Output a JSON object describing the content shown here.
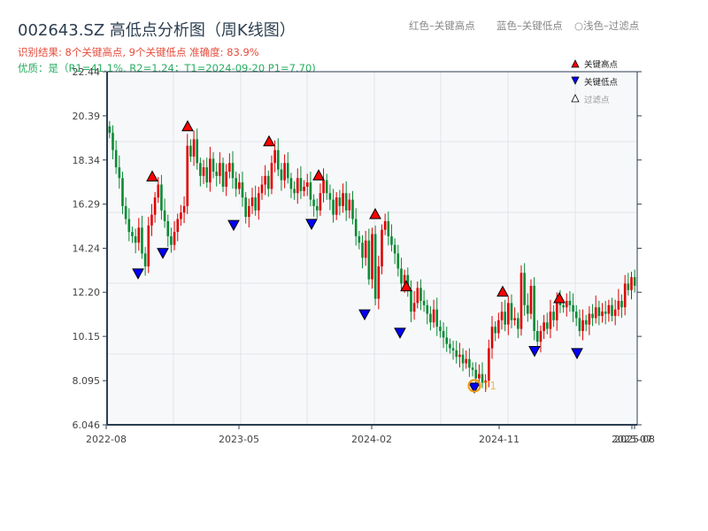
{
  "header": {
    "title": "002643.SZ 高低点分析图（周K线图）",
    "result_line": "识别结果: 8个关键高点, 9个关键低点  准确度: 83.9%",
    "quality_line": "优质：是（R1=41.1%, R2=1.24；T1=2024-09-20 P1=7.70)",
    "hint_high": "红色–关键高点",
    "hint_low": "蓝色–关键低点",
    "hint_filtered": "○浅色–过滤点"
  },
  "colors": {
    "up": "#e00000",
    "down": "#0a8a34",
    "high_marker": "#ff0000",
    "low_marker": "#0000ff",
    "t1_ring": "#f39c12",
    "axis": "#2c3e50",
    "plot_bg": "#f7f8fa",
    "grid": "#e1e4e8"
  },
  "chart_data": {
    "type": "candlestick",
    "title": "002643.SZ 高低点分析图（周K线图）",
    "xlabel": "",
    "ylabel": "",
    "ylim": [
      6.046,
      22.44
    ],
    "yticks": [
      6.046,
      8.095,
      10.15,
      12.2,
      14.24,
      16.29,
      18.34,
      20.39,
      22.44
    ],
    "ytick_labels": [
      "6.046",
      "8.095",
      "10.15",
      "12.20",
      "14.24",
      "16.29",
      "18.34",
      "20.39",
      "22.44"
    ],
    "xtick_labels": [
      "2022-08",
      "2023-05",
      "2024-02",
      "2024-11",
      "2025-07",
      "2025-08"
    ],
    "legend": [
      {
        "label": "关键高点",
        "marker": "triangle-up",
        "color": "#ff0000"
      },
      {
        "label": "关键低点",
        "marker": "triangle-down",
        "color": "#0000ff"
      },
      {
        "label": "过滤点",
        "marker": "triangle-up-hollow",
        "color": "#999999"
      }
    ],
    "grid": true,
    "annotations": [
      {
        "label": "T1",
        "date": "2024-09-20",
        "price": 7.7
      }
    ],
    "weekly_close": [
      19.6,
      18.8,
      18.0,
      17.5,
      16.2,
      15.6,
      15.0,
      14.8,
      14.5,
      15.2,
      14.0,
      13.4,
      15.3,
      15.8,
      16.6,
      17.2,
      16.0,
      15.5,
      14.8,
      14.4,
      15.0,
      15.6,
      15.9,
      16.2,
      19.0,
      18.5,
      19.3,
      18.2,
      17.6,
      18.0,
      17.3,
      18.4,
      17.8,
      17.6,
      18.2,
      17.1,
      17.8,
      18.2,
      17.5,
      17.0,
      17.3,
      16.6,
      15.7,
      16.2,
      16.6,
      16.0,
      16.8,
      17.2,
      17.6,
      17.0,
      18.2,
      18.8,
      17.9,
      17.4,
      18.2,
      17.5,
      17.0,
      16.8,
      17.5,
      16.9,
      17.1,
      17.3,
      16.5,
      16.2,
      16.0,
      16.8,
      17.4,
      16.8,
      16.5,
      15.8,
      16.6,
      16.2,
      16.8,
      16.0,
      16.5,
      15.6,
      14.8,
      14.5,
      13.8,
      14.6,
      12.8,
      14.9,
      11.9,
      13.4,
      15.1,
      15.5,
      14.8,
      14.4,
      14.0,
      13.3,
      12.6,
      13.0,
      12.3,
      11.3,
      11.7,
      12.4,
      11.8,
      11.6,
      11.2,
      10.8,
      11.4,
      10.6,
      10.4,
      10.1,
      9.8,
      9.6,
      9.5,
      9.2,
      9.3,
      8.9,
      9.1,
      8.7,
      8.6,
      8.2,
      8.4,
      8.0,
      8.1,
      9.6,
      10.6,
      10.3,
      10.9,
      11.3,
      10.7,
      11.7,
      10.9,
      11.0,
      10.5,
      13.1,
      11.6,
      11.2,
      12.5,
      10.4,
      9.9,
      10.4,
      10.8,
      10.5,
      11.3,
      10.9,
      11.8,
      11.6,
      11.5,
      11.8,
      11.6,
      11.3,
      11.0,
      10.4,
      10.9,
      10.7,
      11.2,
      11.0,
      11.5,
      11.1,
      11.3,
      11.2,
      11.6,
      11.1,
      11.4,
      11.8,
      11.5,
      12.6,
      12.3,
      12.9,
      12.5
    ]
  },
  "key_highs": [
    {
      "x": 172,
      "price": 17.45
    },
    {
      "x": 212,
      "price": 19.78
    },
    {
      "x": 304,
      "price": 19.08
    },
    {
      "x": 360,
      "price": 17.5
    },
    {
      "x": 424,
      "price": 15.7
    },
    {
      "x": 459,
      "price": 12.35
    },
    {
      "x": 568,
      "price": 12.1
    },
    {
      "x": 632,
      "price": 11.8
    }
  ],
  "key_lows": [
    {
      "x": 156,
      "price": 13.2
    },
    {
      "x": 184,
      "price": 14.15
    },
    {
      "x": 264,
      "price": 15.45
    },
    {
      "x": 352,
      "price": 15.5
    },
    {
      "x": 412,
      "price": 11.3
    },
    {
      "x": 452,
      "price": 10.45
    },
    {
      "x": 536,
      "price": 7.9
    },
    {
      "x": 604,
      "price": 9.6
    },
    {
      "x": 652,
      "price": 9.5
    }
  ]
}
